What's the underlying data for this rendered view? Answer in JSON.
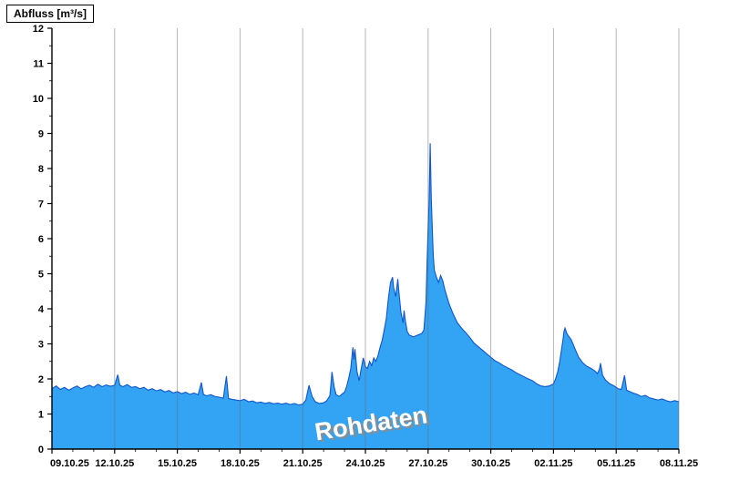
{
  "header": {
    "title": "Abfluss [m³/s]"
  },
  "chart_data": {
    "type": "area",
    "title": "Abfluss [m³/s]",
    "ylabel": "Abfluss [m³/s]",
    "xlabel": "",
    "watermark": "Rohdaten",
    "xlim_days": [
      0,
      30
    ],
    "ylim": [
      0,
      12
    ],
    "y_tick_step": 1,
    "y_minor_step": 0.5,
    "x_major_step_days": 3,
    "x_minor_step_days": 1,
    "x_tick_labels": [
      "09.10.25",
      "12.10.25",
      "15.10.25",
      "18.10.25",
      "21.10.25",
      "24.10.25",
      "27.10.25",
      "30.10.25",
      "02.11.25",
      "05.11.25",
      "08.11.25"
    ],
    "grid": "vertical-only",
    "legend": "none",
    "colors": {
      "fill": "#33a3f3",
      "line": "#1155cc",
      "grid": "#6b6b6b",
      "axis": "#000000",
      "tick_text": "#000000",
      "watermark_fill": "#ffffff",
      "watermark_shadow": "#8c8c8c"
    },
    "series": [
      {
        "name": "Rohdaten",
        "x_unit": "days since 09.10.25",
        "points": [
          [
            0,
            1.72
          ],
          [
            0.2,
            1.8
          ],
          [
            0.4,
            1.7
          ],
          [
            0.6,
            1.76
          ],
          [
            0.8,
            1.68
          ],
          [
            1,
            1.74
          ],
          [
            1.2,
            1.8
          ],
          [
            1.4,
            1.72
          ],
          [
            1.6,
            1.78
          ],
          [
            1.8,
            1.82
          ],
          [
            2,
            1.76
          ],
          [
            2.2,
            1.85
          ],
          [
            2.4,
            1.78
          ],
          [
            2.6,
            1.83
          ],
          [
            2.8,
            1.79
          ],
          [
            3,
            1.82
          ],
          [
            3.15,
            2.12
          ],
          [
            3.25,
            1.82
          ],
          [
            3.4,
            1.78
          ],
          [
            3.6,
            1.84
          ],
          [
            3.8,
            1.76
          ],
          [
            4,
            1.78
          ],
          [
            4.2,
            1.72
          ],
          [
            4.4,
            1.76
          ],
          [
            4.6,
            1.68
          ],
          [
            4.8,
            1.72
          ],
          [
            5,
            1.66
          ],
          [
            5.2,
            1.7
          ],
          [
            5.4,
            1.63
          ],
          [
            5.6,
            1.67
          ],
          [
            5.8,
            1.6
          ],
          [
            6,
            1.64
          ],
          [
            6.2,
            1.58
          ],
          [
            6.4,
            1.62
          ],
          [
            6.6,
            1.56
          ],
          [
            6.8,
            1.6
          ],
          [
            7,
            1.55
          ],
          [
            7.15,
            1.9
          ],
          [
            7.25,
            1.56
          ],
          [
            7.4,
            1.52
          ],
          [
            7.6,
            1.55
          ],
          [
            7.8,
            1.5
          ],
          [
            8,
            1.48
          ],
          [
            8.2,
            1.45
          ],
          [
            8.35,
            2.08
          ],
          [
            8.45,
            1.44
          ],
          [
            8.6,
            1.42
          ],
          [
            8.8,
            1.4
          ],
          [
            9,
            1.38
          ],
          [
            9.2,
            1.42
          ],
          [
            9.4,
            1.35
          ],
          [
            9.6,
            1.37
          ],
          [
            9.8,
            1.32
          ],
          [
            10,
            1.34
          ],
          [
            10.2,
            1.3
          ],
          [
            10.4,
            1.33
          ],
          [
            10.6,
            1.29
          ],
          [
            10.8,
            1.31
          ],
          [
            11,
            1.28
          ],
          [
            11.2,
            1.31
          ],
          [
            11.4,
            1.27
          ],
          [
            11.6,
            1.3
          ],
          [
            11.8,
            1.26
          ],
          [
            12,
            1.28
          ],
          [
            12.15,
            1.4
          ],
          [
            12.3,
            1.82
          ],
          [
            12.45,
            1.5
          ],
          [
            12.6,
            1.35
          ],
          [
            12.8,
            1.3
          ],
          [
            13,
            1.32
          ],
          [
            13.15,
            1.38
          ],
          [
            13.3,
            1.52
          ],
          [
            13.4,
            2.2
          ],
          [
            13.5,
            1.78
          ],
          [
            13.6,
            1.55
          ],
          [
            13.75,
            1.5
          ],
          [
            13.9,
            1.58
          ],
          [
            14,
            1.62
          ],
          [
            14.1,
            1.78
          ],
          [
            14.2,
            2.02
          ],
          [
            14.3,
            2.3
          ],
          [
            14.4,
            2.9
          ],
          [
            14.45,
            2.55
          ],
          [
            14.5,
            2.85
          ],
          [
            14.6,
            2.2
          ],
          [
            14.7,
            1.95
          ],
          [
            14.8,
            2.3
          ],
          [
            14.9,
            2.6
          ],
          [
            15,
            2.35
          ],
          [
            15.1,
            2.3
          ],
          [
            15.2,
            2.5
          ],
          [
            15.3,
            2.38
          ],
          [
            15.4,
            2.6
          ],
          [
            15.5,
            2.5
          ],
          [
            15.6,
            2.66
          ],
          [
            15.7,
            2.9
          ],
          [
            15.8,
            3.1
          ],
          [
            15.9,
            3.4
          ],
          [
            16,
            3.72
          ],
          [
            16.1,
            4.3
          ],
          [
            16.2,
            4.75
          ],
          [
            16.3,
            4.9
          ],
          [
            16.35,
            4.6
          ],
          [
            16.45,
            4.35
          ],
          [
            16.55,
            4.85
          ],
          [
            16.6,
            4.5
          ],
          [
            16.7,
            3.9
          ],
          [
            16.8,
            3.6
          ],
          [
            16.85,
            3.95
          ],
          [
            16.9,
            3.7
          ],
          [
            17,
            3.35
          ],
          [
            17.1,
            3.25
          ],
          [
            17.3,
            3.2
          ],
          [
            17.5,
            3.25
          ],
          [
            17.7,
            3.3
          ],
          [
            17.8,
            3.4
          ],
          [
            17.9,
            4.2
          ],
          [
            17.95,
            5.3
          ],
          [
            18,
            6.3
          ],
          [
            18.05,
            7.1
          ],
          [
            18.1,
            8.72
          ],
          [
            18.15,
            7.2
          ],
          [
            18.2,
            6.3
          ],
          [
            18.25,
            5.5
          ],
          [
            18.3,
            5.1
          ],
          [
            18.4,
            4.9
          ],
          [
            18.5,
            4.75
          ],
          [
            18.6,
            4.95
          ],
          [
            18.7,
            4.8
          ],
          [
            18.8,
            4.55
          ],
          [
            18.9,
            4.35
          ],
          [
            19,
            4.15
          ],
          [
            19.2,
            3.85
          ],
          [
            19.4,
            3.6
          ],
          [
            19.6,
            3.45
          ],
          [
            19.8,
            3.32
          ],
          [
            20,
            3.18
          ],
          [
            20.2,
            3.02
          ],
          [
            20.4,
            2.92
          ],
          [
            20.6,
            2.82
          ],
          [
            20.8,
            2.72
          ],
          [
            21,
            2.62
          ],
          [
            21.2,
            2.52
          ],
          [
            21.4,
            2.46
          ],
          [
            21.6,
            2.38
          ],
          [
            21.8,
            2.32
          ],
          [
            22,
            2.26
          ],
          [
            22.2,
            2.18
          ],
          [
            22.4,
            2.12
          ],
          [
            22.6,
            2.06
          ],
          [
            22.8,
            2.0
          ],
          [
            23,
            1.95
          ],
          [
            23.2,
            1.86
          ],
          [
            23.4,
            1.8
          ],
          [
            23.6,
            1.78
          ],
          [
            23.8,
            1.8
          ],
          [
            24,
            1.86
          ],
          [
            24.1,
            2.0
          ],
          [
            24.2,
            2.2
          ],
          [
            24.3,
            2.5
          ],
          [
            24.4,
            2.9
          ],
          [
            24.45,
            3.1
          ],
          [
            24.5,
            3.35
          ],
          [
            24.55,
            3.45
          ],
          [
            24.65,
            3.28
          ],
          [
            24.75,
            3.2
          ],
          [
            24.85,
            3.12
          ],
          [
            25,
            2.9
          ],
          [
            25.2,
            2.62
          ],
          [
            25.4,
            2.46
          ],
          [
            25.6,
            2.36
          ],
          [
            25.8,
            2.3
          ],
          [
            26,
            2.22
          ],
          [
            26.1,
            2.15
          ],
          [
            26.2,
            2.28
          ],
          [
            26.25,
            2.45
          ],
          [
            26.35,
            2.1
          ],
          [
            26.5,
            1.96
          ],
          [
            26.7,
            1.86
          ],
          [
            26.9,
            1.8
          ],
          [
            27,
            1.76
          ],
          [
            27.1,
            1.72
          ],
          [
            27.25,
            1.7
          ],
          [
            27.4,
            2.1
          ],
          [
            27.5,
            1.68
          ],
          [
            27.65,
            1.64
          ],
          [
            27.8,
            1.6
          ],
          [
            28,
            1.56
          ],
          [
            28.2,
            1.5
          ],
          [
            28.4,
            1.53
          ],
          [
            28.6,
            1.46
          ],
          [
            28.8,
            1.43
          ],
          [
            29,
            1.4
          ],
          [
            29.2,
            1.43
          ],
          [
            29.4,
            1.38
          ],
          [
            29.6,
            1.35
          ],
          [
            29.8,
            1.38
          ],
          [
            30,
            1.35
          ]
        ]
      }
    ]
  }
}
